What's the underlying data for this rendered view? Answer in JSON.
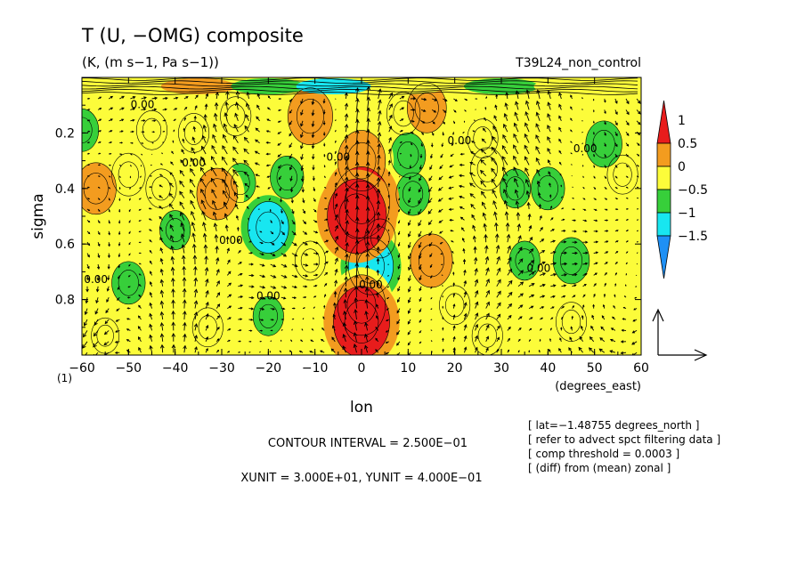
{
  "chart_data": {
    "type": "heatmap",
    "title": "T (U, −OMG) composite",
    "subtitle": "(K, (m s−1, Pa s−1))",
    "experiment": "T39L24_non_control",
    "xlabel": "lon",
    "xunits": "(degrees_east)",
    "ylabel": "sigma",
    "y_origin_label": "(1)",
    "xlim": [
      -60,
      60
    ],
    "ylim": [
      1.0,
      0.0
    ],
    "xticks": [
      "−60",
      "−50",
      "−40",
      "−30",
      "−20",
      "−10",
      "0",
      "10",
      "20",
      "30",
      "40",
      "50",
      "60"
    ],
    "yticks": [
      "0.2",
      "0.4",
      "0.6",
      "0.8"
    ],
    "contour_labels": [
      {
        "text": "0.00",
        "lon": -47,
        "sigma": 0.11
      },
      {
        "text": "0.00",
        "lon": -36,
        "sigma": 0.32
      },
      {
        "text": "0.00",
        "lon": -28,
        "sigma": 0.6
      },
      {
        "text": "0.00",
        "lon": -57,
        "sigma": 0.74
      },
      {
        "text": "0.00",
        "lon": -20,
        "sigma": 0.8
      },
      {
        "text": "0.00",
        "lon": -5,
        "sigma": 0.3
      },
      {
        "text": "0.00",
        "lon": 2,
        "sigma": 0.76
      },
      {
        "text": "0.00",
        "lon": 21,
        "sigma": 0.24
      },
      {
        "text": "0.00",
        "lon": 48,
        "sigma": 0.27
      },
      {
        "text": "0.00",
        "lon": 38,
        "sigma": 0.7
      }
    ],
    "colorbar": {
      "ticks": [
        "1",
        "0.5",
        "0",
        "−0.5",
        "−1",
        "−1.5"
      ],
      "levels": [
        {
          "range": [
            1.0,
            1.5
          ],
          "color": "#e81c1c"
        },
        {
          "range": [
            0.5,
            1.0
          ],
          "color": "#f39c1f"
        },
        {
          "range": [
            0.0,
            0.5
          ],
          "color": "#fcfc3a"
        },
        {
          "range": [
            -0.5,
            0.0
          ],
          "color": "#37cf3a"
        },
        {
          "range": [
            -1.0,
            -0.5
          ],
          "color": "#18e6f0"
        },
        {
          "range": [
            -1.5,
            -1.0
          ],
          "color": "#1e90f5"
        }
      ]
    },
    "features": [
      {
        "lon": -60,
        "sigma": 0.19,
        "value": -0.3
      },
      {
        "lon": -45,
        "sigma": 0.19,
        "value": 0.2
      },
      {
        "lon": -36,
        "sigma": 0.2,
        "value": 0.2
      },
      {
        "lon": -11,
        "sigma": 0.14,
        "value": 0.7
      },
      {
        "lon": -27,
        "sigma": 0.14,
        "value": 0.2
      },
      {
        "lon": 9,
        "sigma": 0.13,
        "value": 0.3
      },
      {
        "lon": 14,
        "sigma": 0.11,
        "value": 0.5
      },
      {
        "lon": -50,
        "sigma": 0.35,
        "value": 0.3
      },
      {
        "lon": -57,
        "sigma": 0.4,
        "value": 0.55
      },
      {
        "lon": -43,
        "sigma": 0.4,
        "value": 0.2
      },
      {
        "lon": -31,
        "sigma": 0.42,
        "value": 0.55
      },
      {
        "lon": -26,
        "sigma": 0.38,
        "value": -0.2
      },
      {
        "lon": -16,
        "sigma": 0.36,
        "value": -0.3
      },
      {
        "lon": -20,
        "sigma": 0.54,
        "value": -0.55
      },
      {
        "lon": -40,
        "sigma": 0.55,
        "value": -0.2
      },
      {
        "lon": -50,
        "sigma": 0.74,
        "value": -0.3
      },
      {
        "lon": -11,
        "sigma": 0.66,
        "value": 0.2
      },
      {
        "lon": -20,
        "sigma": 0.86,
        "value": -0.2
      },
      {
        "lon": -33,
        "sigma": 0.9,
        "value": 0.2
      },
      {
        "lon": 0,
        "sigma": 0.3,
        "value": 0.8
      },
      {
        "lon": 0,
        "sigma": 0.45,
        "value": 1.1
      },
      {
        "lon": -1,
        "sigma": 0.5,
        "value": 1.2
      },
      {
        "lon": 2,
        "sigma": 0.68,
        "value": -0.7
      },
      {
        "lon": 0,
        "sigma": 0.82,
        "value": 0.8
      },
      {
        "lon": 0,
        "sigma": 0.88,
        "value": 1.1
      },
      {
        "lon": 4,
        "sigma": 0.58,
        "value": 0.2
      },
      {
        "lon": 10,
        "sigma": 0.28,
        "value": -0.35
      },
      {
        "lon": 11,
        "sigma": 0.42,
        "value": -0.3
      },
      {
        "lon": 15,
        "sigma": 0.66,
        "value": 0.6
      },
      {
        "lon": 26,
        "sigma": 0.22,
        "value": 0.2
      },
      {
        "lon": 27,
        "sigma": 0.33,
        "value": 0.3
      },
      {
        "lon": 33,
        "sigma": 0.4,
        "value": -0.2
      },
      {
        "lon": 40,
        "sigma": 0.4,
        "value": -0.3
      },
      {
        "lon": 52,
        "sigma": 0.24,
        "value": -0.4
      },
      {
        "lon": 56,
        "sigma": 0.35,
        "value": 0.2
      },
      {
        "lon": 45,
        "sigma": 0.66,
        "value": -0.4
      },
      {
        "lon": 35,
        "sigma": 0.66,
        "value": -0.2
      },
      {
        "lon": 20,
        "sigma": 0.82,
        "value": 0.2
      },
      {
        "lon": 45,
        "sigma": 0.88,
        "value": 0.2
      },
      {
        "lon": 27,
        "sigma": 0.93,
        "value": 0.2
      },
      {
        "lon": -55,
        "sigma": 0.93,
        "value": 0.1
      }
    ],
    "top_band": [
      {
        "lon": -55,
        "value": 0.4
      },
      {
        "lon": -35,
        "value": 0.6
      },
      {
        "lon": -20,
        "value": -0.3
      },
      {
        "lon": -6,
        "value": -0.6
      },
      {
        "lon": 10,
        "value": 0.3
      },
      {
        "lon": 30,
        "value": -0.2
      },
      {
        "lon": 45,
        "value": 0.3
      },
      {
        "lon": 55,
        "value": 0.2
      }
    ],
    "vector_reference": {
      "xunit": "3.000E+01",
      "yunit": "4.000E−01"
    }
  },
  "footer": {
    "contour_interval": "CONTOUR INTERVAL = 2.500E−01",
    "units": "XUNIT = 3.000E+01, YUNIT = 4.000E−01"
  },
  "notes": [
    "[ lat=−1.48755 degrees_north ]",
    "[ refer to advect spct filtering data ]",
    "[ comp threshold = 0.0003 ]",
    "[ (diff) from (mean) zonal ]"
  ]
}
